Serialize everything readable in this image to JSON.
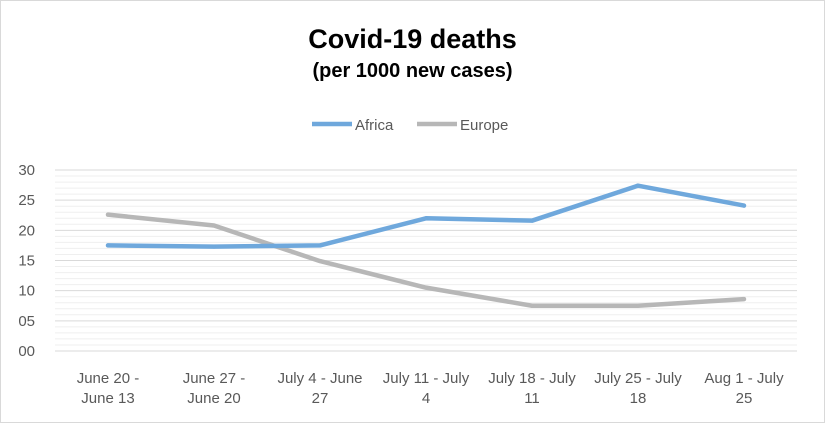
{
  "chart_data": {
    "type": "line",
    "title": "Covid-19 deaths",
    "subtitle": "(per 1000 new cases)",
    "categories": [
      [
        "June 20 -",
        "June 13"
      ],
      [
        "June 27 -",
        "June 20"
      ],
      [
        "July 4 - June",
        "27"
      ],
      [
        "July 11 - July",
        "4"
      ],
      [
        "July 18 - July",
        "11"
      ],
      [
        "July 25 - July",
        "18"
      ],
      [
        "Aug 1 - July",
        "25"
      ]
    ],
    "series": [
      {
        "name": "Africa",
        "color": "#6fa8dc",
        "values": [
          17.5,
          17.3,
          17.5,
          22.0,
          21.6,
          27.4,
          24.1
        ]
      },
      {
        "name": "Europe",
        "color": "#b7b7b7",
        "values": [
          22.6,
          20.8,
          14.9,
          10.5,
          7.5,
          7.5,
          8.6
        ]
      }
    ],
    "yticks": [
      "00",
      "05",
      "10",
      "15",
      "20",
      "25",
      "30"
    ],
    "ylim": [
      0,
      30
    ],
    "legend": "top-center",
    "grid": true
  }
}
